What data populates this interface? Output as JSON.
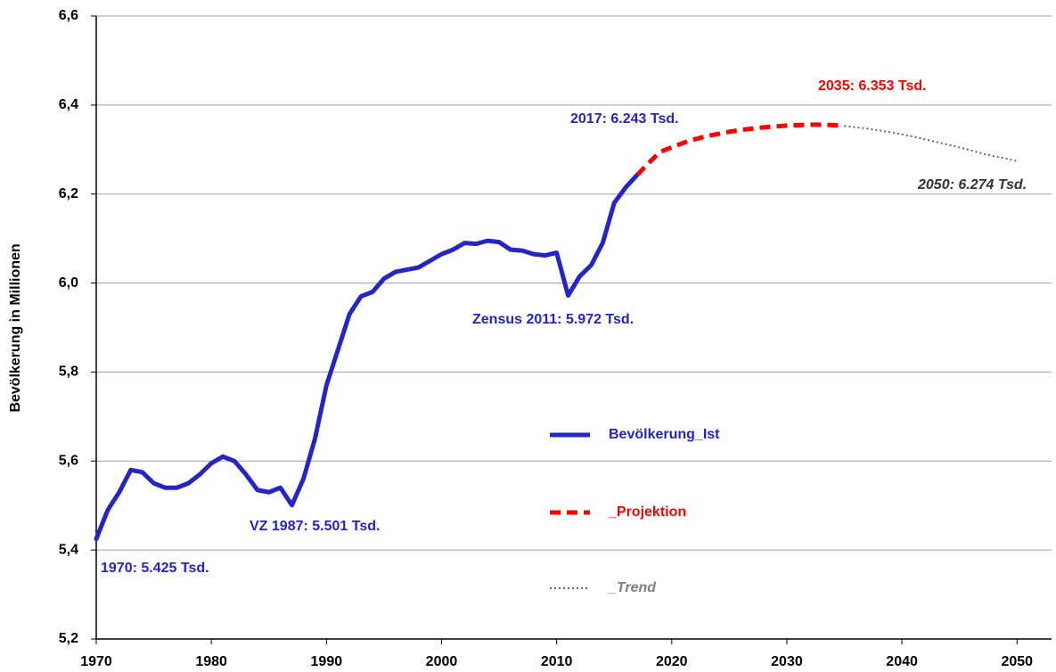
{
  "chart_data": {
    "type": "line",
    "y_label": "Bevölkerung in Millionen",
    "xlim": [
      1970,
      2053
    ],
    "xticks": [
      1970,
      1980,
      1990,
      2000,
      2010,
      2020,
      2030,
      2040,
      2050
    ],
    "ylim": [
      5.2,
      6.6
    ],
    "yticks": [
      {
        "value": 5.2,
        "label": "5,2"
      },
      {
        "value": 5.4,
        "label": "5,4"
      },
      {
        "value": 5.6,
        "label": "5,6"
      },
      {
        "value": 5.8,
        "label": "5,8"
      },
      {
        "value": 6.0,
        "label": "6,0"
      },
      {
        "value": 6.2,
        "label": "6,2"
      },
      {
        "value": 6.4,
        "label": "6,4"
      },
      {
        "value": 6.6,
        "label": "6,6"
      }
    ],
    "grid": true,
    "legend": "center",
    "series": [
      {
        "name": "Bevölkerung_Ist",
        "color": "#2424c8",
        "style": "solid",
        "x": [
          1970,
          1971,
          1972,
          1973,
          1974,
          1975,
          1976,
          1977,
          1978,
          1979,
          1980,
          1981,
          1982,
          1983,
          1984,
          1985,
          1986,
          1987,
          1988,
          1989,
          1990,
          1991,
          1992,
          1993,
          1994,
          1995,
          1996,
          1997,
          1998,
          1999,
          2000,
          2001,
          2002,
          2003,
          2004,
          2005,
          2006,
          2007,
          2008,
          2009,
          2010,
          2011,
          2012,
          2013,
          2014,
          2015,
          2016,
          2017
        ],
        "values": [
          5.425,
          5.49,
          5.53,
          5.58,
          5.575,
          5.55,
          5.54,
          5.54,
          5.55,
          5.57,
          5.595,
          5.61,
          5.6,
          5.57,
          5.535,
          5.53,
          5.54,
          5.501,
          5.56,
          5.65,
          5.77,
          5.85,
          5.93,
          5.97,
          5.98,
          6.01,
          6.025,
          6.03,
          6.035,
          6.05,
          6.065,
          6.075,
          6.09,
          6.088,
          6.095,
          6.092,
          6.075,
          6.073,
          6.065,
          6.062,
          6.068,
          5.972,
          6.015,
          6.04,
          6.09,
          6.18,
          6.215,
          6.243
        ]
      },
      {
        "name": "_Projektion",
        "color": "#ff0000",
        "style": "dashed",
        "x": [
          2017,
          2018,
          2019,
          2020,
          2021,
          2022,
          2023,
          2024,
          2025,
          2026,
          2027,
          2028,
          2029,
          2030,
          2031,
          2032,
          2033,
          2034,
          2035
        ],
        "values": [
          6.243,
          6.27,
          6.295,
          6.305,
          6.315,
          6.323,
          6.33,
          6.335,
          6.34,
          6.344,
          6.347,
          6.35,
          6.352,
          6.354,
          6.355,
          6.356,
          6.356,
          6.355,
          6.353
        ]
      },
      {
        "name": "_Trend",
        "color": "#666666",
        "style": "dotted",
        "x": [
          2035,
          2036,
          2037,
          2038,
          2039,
          2040,
          2041,
          2042,
          2043,
          2044,
          2045,
          2046,
          2047,
          2048,
          2049,
          2050
        ],
        "values": [
          6.353,
          6.35,
          6.347,
          6.343,
          6.339,
          6.334,
          6.329,
          6.323,
          6.317,
          6.311,
          6.305,
          6.298,
          6.291,
          6.285,
          6.28,
          6.274
        ]
      }
    ],
    "annotations": [
      {
        "text": "1970: 5.425 Tsd.",
        "color": "#2424c8"
      },
      {
        "text": "VZ 1987: 5.501 Tsd.",
        "color": "#2424c8"
      },
      {
        "text": "Zensus 2011: 5.972 Tsd.",
        "color": "#2424c8"
      },
      {
        "text": "2017: 6.243 Tsd.",
        "color": "#2424c8"
      },
      {
        "text": "2035: 6.353 Tsd.",
        "color": "#ff0000"
      },
      {
        "text": "2050: 6.274 Tsd.",
        "color": "#333333"
      }
    ]
  }
}
